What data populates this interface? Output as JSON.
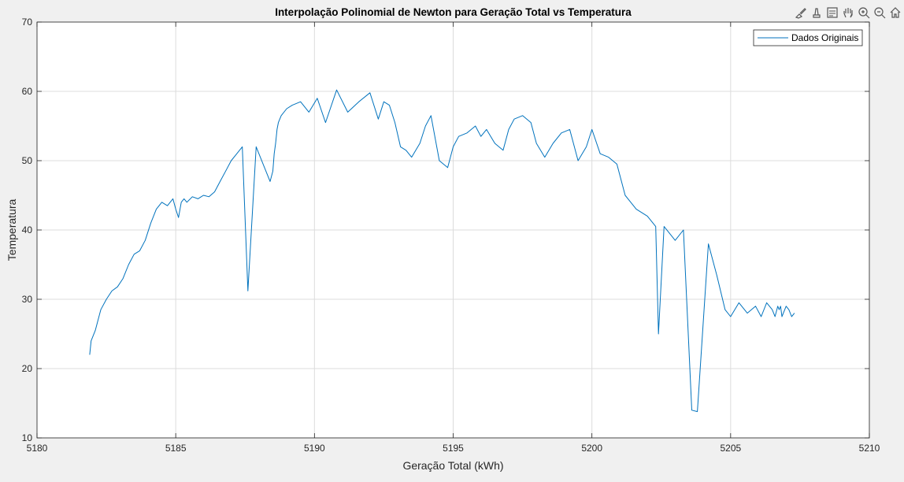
{
  "window": {
    "background": "#f0f0f0"
  },
  "toolbar": {
    "icons": [
      "brush-icon",
      "data-tip-icon",
      "export-icon",
      "pan-icon",
      "zoom-in-icon",
      "zoom-out-icon",
      "home-icon"
    ]
  },
  "chart_data": {
    "type": "line",
    "title": "Interpolação Polinomial de Newton para Geração Total vs Temperatura",
    "xlabel": "Geração Total (kWh)",
    "ylabel": "Temperatura",
    "xlim": [
      5180,
      5210
    ],
    "ylim": [
      10,
      70
    ],
    "xticks": [
      5180,
      5185,
      5190,
      5195,
      5200,
      5205,
      5210
    ],
    "yticks": [
      10,
      20,
      30,
      40,
      50,
      60,
      70
    ],
    "grid": true,
    "legend_position": "top-right",
    "line_color": "#0072bd",
    "series": [
      {
        "name": "Dados Originais",
        "x": [
          5181.9,
          5181.95,
          5182.1,
          5182.2,
          5182.3,
          5182.5,
          5182.7,
          5182.9,
          5183.1,
          5183.3,
          5183.5,
          5183.7,
          5183.9,
          5184.1,
          5184.3,
          5184.5,
          5184.7,
          5184.9,
          5185.0,
          5185.1,
          5185.2,
          5185.3,
          5185.4,
          5185.6,
          5185.8,
          5186.0,
          5186.2,
          5186.4,
          5186.6,
          5186.8,
          5187.0,
          5187.2,
          5187.4,
          5187.6,
          5187.9,
          5188.2,
          5188.4,
          5188.5,
          5188.55,
          5188.6,
          5188.65,
          5188.7,
          5188.8,
          5189.0,
          5189.2,
          5189.5,
          5189.8,
          5190.1,
          5190.4,
          5190.8,
          5191.2,
          5191.6,
          5192.0,
          5192.3,
          5192.5,
          5192.7,
          5192.9,
          5193.1,
          5193.3,
          5193.5,
          5193.8,
          5194.0,
          5194.2,
          5194.5,
          5194.8,
          5195.0,
          5195.2,
          5195.5,
          5195.8,
          5196.0,
          5196.2,
          5196.5,
          5196.8,
          5197.0,
          5197.2,
          5197.5,
          5197.8,
          5198.0,
          5198.3,
          5198.6,
          5198.9,
          5199.2,
          5199.5,
          5199.8,
          5200.0,
          5200.3,
          5200.6,
          5200.9,
          5201.2,
          5201.6,
          5202.0,
          5202.3,
          5202.4,
          5202.6,
          5203.0,
          5203.3,
          5203.6,
          5203.8,
          5204.2,
          5204.5,
          5204.8,
          5205.0,
          5205.3,
          5205.6,
          5205.9,
          5206.1,
          5206.3,
          5206.5,
          5206.6,
          5206.7,
          5206.75,
          5206.8,
          5206.85,
          5206.9,
          5207.0,
          5207.1,
          5207.2,
          5207.3
        ],
        "y": [
          22.0,
          24.0,
          25.5,
          27.0,
          28.5,
          30.0,
          31.2,
          31.8,
          33.0,
          35.0,
          36.5,
          37.0,
          38.5,
          41.0,
          43.0,
          44.0,
          43.5,
          44.5,
          43.0,
          41.8,
          44.0,
          44.5,
          44.0,
          44.8,
          44.5,
          45.0,
          44.8,
          45.5,
          47.0,
          48.5,
          50.0,
          51.0,
          52.0,
          31.2,
          52.0,
          49.0,
          47.0,
          48.5,
          51.0,
          52.5,
          54.5,
          55.5,
          56.5,
          57.5,
          58.0,
          58.5,
          57.0,
          59.0,
          55.5,
          60.2,
          57.0,
          58.5,
          59.8,
          56.0,
          58.5,
          58.0,
          55.5,
          52.0,
          51.5,
          50.5,
          52.5,
          55.0,
          56.5,
          50.0,
          49.0,
          52.0,
          53.5,
          54.0,
          55.0,
          53.5,
          54.5,
          52.5,
          51.5,
          54.5,
          56.0,
          56.5,
          55.5,
          52.5,
          50.5,
          52.5,
          54.0,
          54.5,
          50.0,
          52.0,
          54.5,
          51.0,
          50.5,
          49.5,
          45.0,
          43.0,
          42.0,
          40.5,
          25.0,
          40.5,
          38.5,
          40.0,
          14.0,
          13.8,
          38.0,
          33.5,
          28.5,
          27.5,
          29.5,
          28.0,
          29.0,
          27.5,
          29.5,
          28.5,
          27.5,
          29.0,
          28.5,
          29.0,
          27.5,
          28.0,
          29.0,
          28.5,
          27.5,
          28.0
        ]
      }
    ]
  }
}
